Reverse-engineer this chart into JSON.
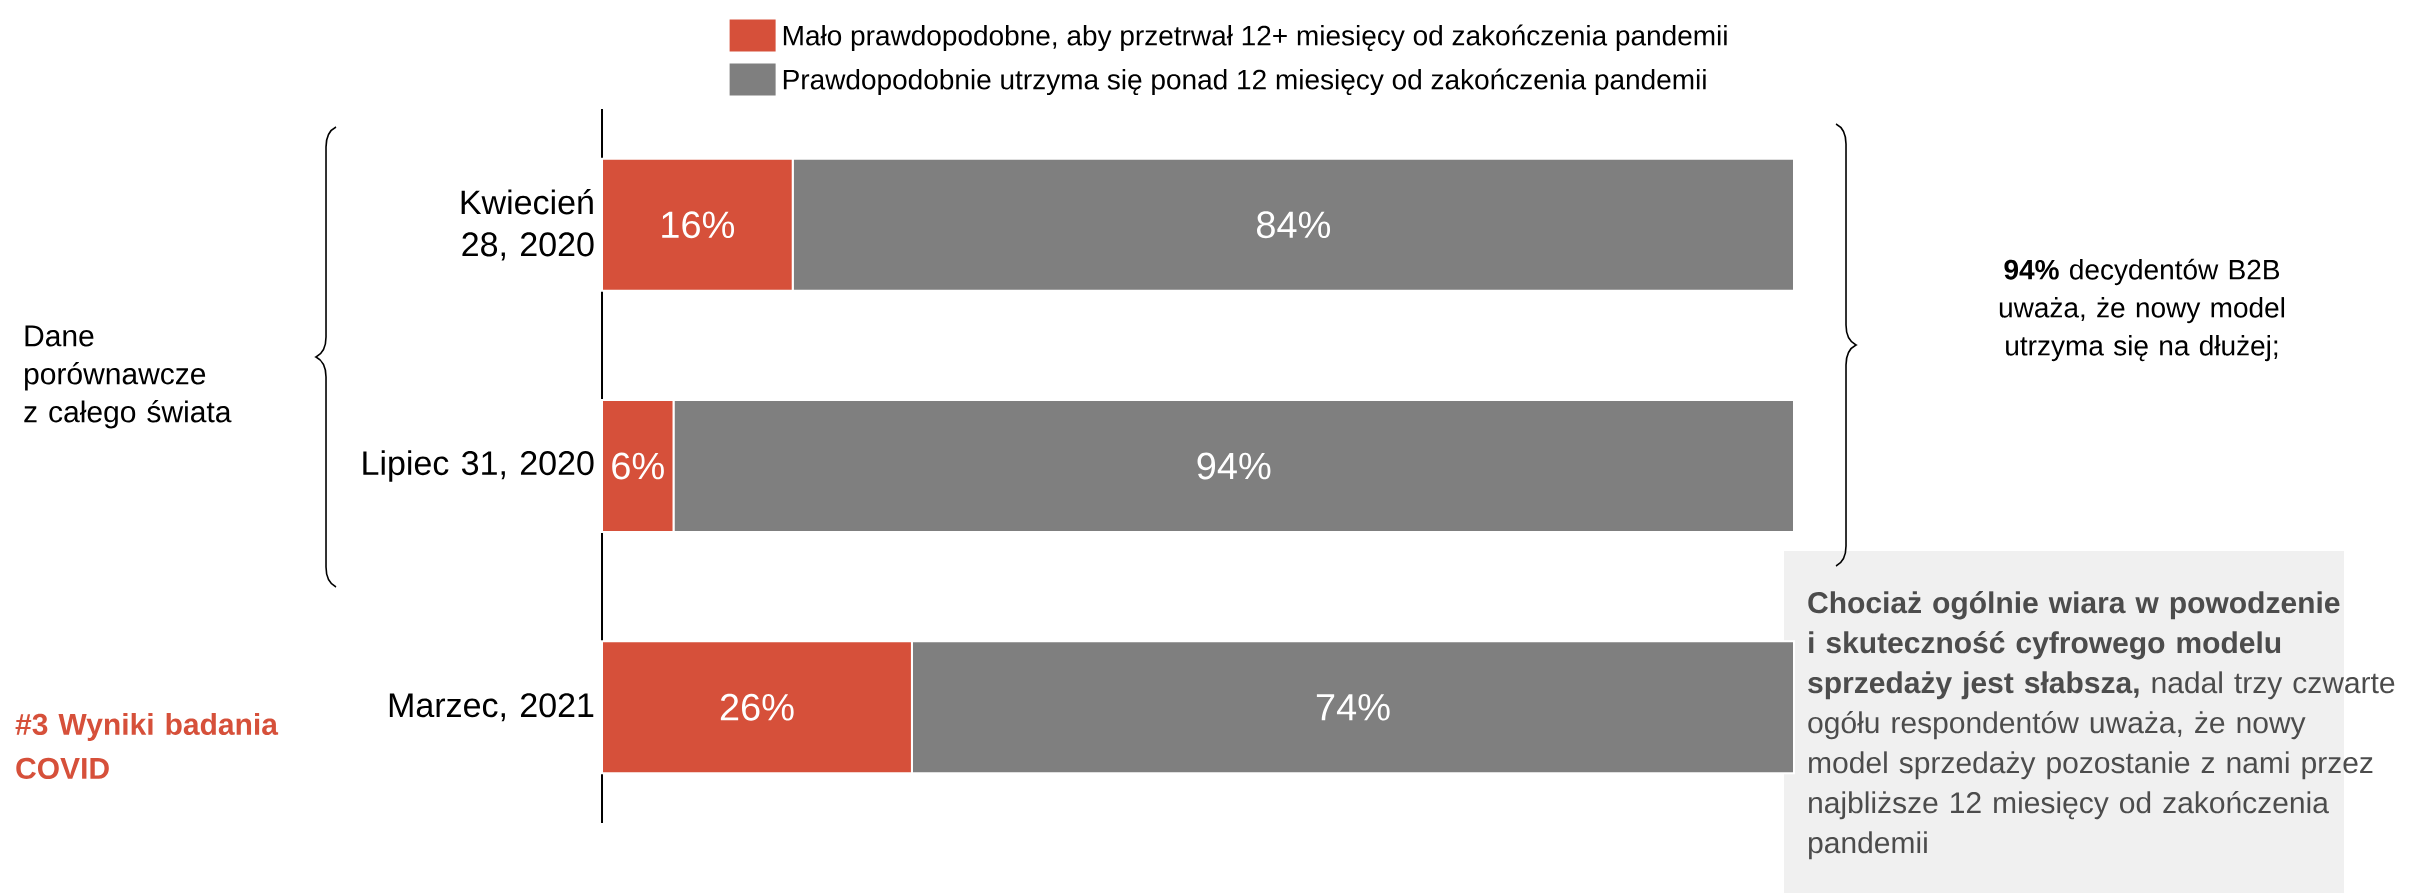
{
  "chart_data": {
    "type": "bar",
    "orientation": "horizontal",
    "stacked": true,
    "legend": "top",
    "categories": [
      "Kwiecień 28, 2020",
      "Lipiec 31, 2020",
      "Marzec, 2021"
    ],
    "series": [
      {
        "name": "Mało prawdopodobne, aby przetrwał 12+ miesięcy od zakończenia pandemii",
        "color": "#d6503a",
        "values": [
          16,
          6,
          26
        ],
        "value_labels": [
          "16%",
          "6%",
          "26%"
        ]
      },
      {
        "name": "Prawdopodobnie utrzyma się ponad 12 miesięcy od zakończenia pandemii",
        "color": "#7f7f7f",
        "values": [
          84,
          94,
          74
        ],
        "value_labels": [
          "84%",
          "94%",
          "74%"
        ]
      }
    ],
    "annotations": [
      "Dane porównawcze z całego świata",
      "**94%** decydentów B2B uważa, że nowy model utrzyma się na dłużej;",
      "**Chociaż ogólnie wiara w powodzenie i skuteczność cyfrowego modelu sprzedaży jest słabsza,** nadal trzy czwarte ogółu respondentów uważa, że nowy model sprzedaży pozostanie z nami przez najbliższe 12 miesięcy od zakończenia pandemii",
      "#3 Wyniki badania COVID"
    ]
  }
}
